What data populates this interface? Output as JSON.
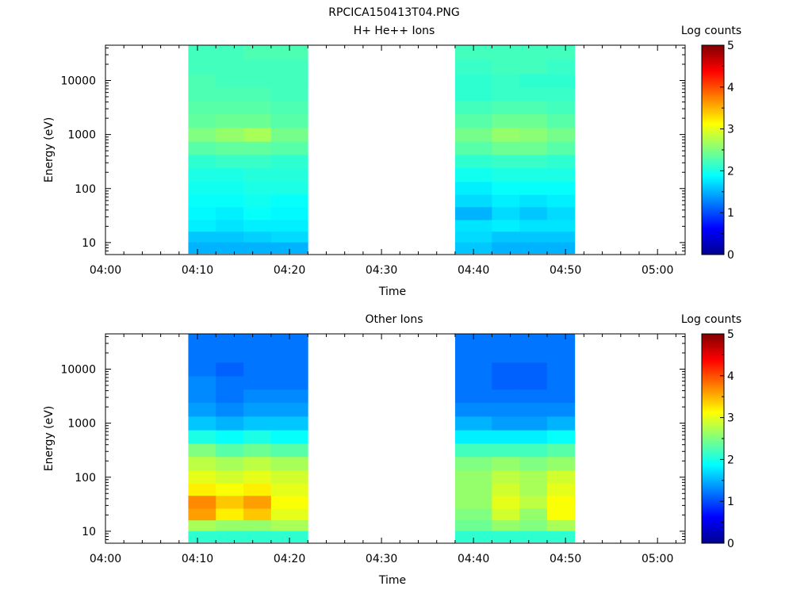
{
  "page_title": "RPCICA150413T04.PNG",
  "x_tick_labels": [
    "04:00",
    "04:10",
    "04:20",
    "04:30",
    "04:40",
    "04:50",
    "05:00"
  ],
  "colormap": [
    "#00008f",
    "#0000ff",
    "#00ffff",
    "#ffff00",
    "#ff0000",
    "#800000"
  ],
  "chart_data": [
    {
      "type": "heatmap",
      "title": "H+ He++ Ions",
      "xlabel": "Time",
      "ylabel": "Energy (eV)",
      "colorbar_label": "Log counts",
      "colorbar_ticks": [
        "0",
        "1",
        "2",
        "3",
        "4",
        "5"
      ],
      "clim": [
        0,
        5
      ],
      "xlim": [
        "04:00",
        "05:03"
      ],
      "ylim": [
        6,
        45000
      ],
      "y_scale": "log",
      "y_tick_labels": [
        "10",
        "100",
        "1000",
        "10000"
      ],
      "columns": [
        "04:09",
        "04:12",
        "04:15",
        "04:18",
        "04:38",
        "04:42",
        "04:45",
        "04:48",
        "04:51"
      ],
      "energies": [
        8,
        13,
        20,
        35,
        60,
        100,
        180,
        320,
        560,
        1000,
        1800,
        3200,
        5600,
        10000,
        18000,
        32000
      ],
      "series": [
        {
          "time_start": "04:09",
          "time_end": "04:12",
          "values": [
            1.5,
            1.6,
            1.8,
            1.85,
            1.9,
            1.95,
            2.0,
            2.1,
            2.3,
            2.5,
            2.35,
            2.3,
            2.25,
            2.25,
            2.2,
            2.2
          ]
        },
        {
          "time_start": "04:12",
          "time_end": "04:15",
          "values": [
            1.5,
            1.6,
            1.75,
            1.8,
            1.9,
            1.95,
            2.0,
            2.15,
            2.35,
            2.6,
            2.4,
            2.3,
            2.25,
            2.2,
            2.2,
            2.2
          ]
        },
        {
          "time_start": "04:15",
          "time_end": "04:18",
          "values": [
            1.5,
            1.65,
            1.8,
            1.9,
            1.95,
            2.0,
            2.05,
            2.15,
            2.35,
            2.7,
            2.4,
            2.3,
            2.25,
            2.2,
            2.2,
            2.25
          ]
        },
        {
          "time_start": "04:18",
          "time_end": "04:22",
          "values": [
            1.5,
            1.7,
            1.8,
            1.85,
            1.9,
            2.0,
            2.05,
            2.1,
            2.3,
            2.45,
            2.3,
            2.25,
            2.2,
            2.2,
            2.2,
            2.25
          ]
        },
        {
          "time_start": "04:38",
          "time_end": "04:42",
          "values": [
            1.6,
            1.7,
            1.75,
            1.5,
            1.7,
            1.8,
            1.95,
            2.1,
            2.3,
            2.45,
            2.3,
            2.2,
            2.1,
            2.1,
            2.15,
            2.2
          ]
        },
        {
          "time_start": "04:42",
          "time_end": "04:45",
          "values": [
            1.5,
            1.6,
            1.8,
            1.7,
            1.8,
            1.9,
            2.0,
            2.15,
            2.4,
            2.6,
            2.4,
            2.25,
            2.15,
            2.15,
            2.2,
            2.2
          ]
        },
        {
          "time_start": "04:45",
          "time_end": "04:48",
          "values": [
            1.5,
            1.6,
            1.75,
            1.6,
            1.75,
            1.9,
            2.0,
            2.15,
            2.4,
            2.55,
            2.4,
            2.25,
            2.15,
            2.1,
            2.2,
            2.2
          ]
        },
        {
          "time_start": "04:48",
          "time_end": "04:51",
          "values": [
            1.5,
            1.6,
            1.75,
            1.7,
            1.8,
            1.9,
            2.0,
            2.1,
            2.3,
            2.45,
            2.3,
            2.2,
            2.15,
            2.1,
            2.15,
            2.2
          ]
        }
      ]
    },
    {
      "type": "heatmap",
      "title": "Other Ions",
      "xlabel": "Time",
      "ylabel": "Energy (eV)",
      "colorbar_label": "Log counts",
      "colorbar_ticks": [
        "0",
        "1",
        "2",
        "3",
        "4",
        "5"
      ],
      "clim": [
        0,
        5
      ],
      "xlim": [
        "04:00",
        "05:03"
      ],
      "ylim": [
        6,
        45000
      ],
      "y_scale": "log",
      "y_tick_labels": [
        "10",
        "100",
        "1000",
        "10000"
      ],
      "energies": [
        8,
        13,
        20,
        35,
        60,
        100,
        180,
        320,
        560,
        1000,
        1800,
        3200,
        5600,
        10000,
        18000,
        32000
      ],
      "series": [
        {
          "time_start": "04:09",
          "time_end": "04:12",
          "values": [
            2.1,
            2.7,
            3.6,
            3.7,
            3.2,
            3.0,
            2.8,
            2.5,
            2.0,
            1.6,
            1.4,
            1.3,
            1.3,
            1.2,
            1.2,
            1.2
          ]
        },
        {
          "time_start": "04:12",
          "time_end": "04:15",
          "values": [
            2.1,
            2.6,
            3.2,
            3.4,
            3.1,
            2.9,
            2.7,
            2.3,
            1.9,
            1.5,
            1.3,
            1.2,
            1.2,
            1.1,
            1.2,
            1.2
          ]
        },
        {
          "time_start": "04:15",
          "time_end": "04:18",
          "values": [
            2.1,
            2.6,
            3.4,
            3.6,
            3.2,
            3.0,
            2.8,
            2.4,
            2.0,
            1.6,
            1.4,
            1.3,
            1.2,
            1.2,
            1.2,
            1.2
          ]
        },
        {
          "time_start": "04:18",
          "time_end": "04:22",
          "values": [
            2.1,
            2.7,
            3.0,
            3.1,
            3.0,
            2.9,
            2.7,
            2.3,
            1.9,
            1.6,
            1.4,
            1.3,
            1.2,
            1.2,
            1.2,
            1.2
          ]
        },
        {
          "time_start": "04:38",
          "time_end": "04:42",
          "values": [
            2.1,
            2.4,
            2.5,
            2.6,
            2.6,
            2.6,
            2.5,
            2.2,
            1.8,
            1.5,
            1.3,
            1.2,
            1.2,
            1.2,
            1.2,
            1.2
          ]
        },
        {
          "time_start": "04:42",
          "time_end": "04:45",
          "values": [
            2.1,
            2.6,
            2.9,
            3.0,
            2.9,
            2.8,
            2.6,
            2.2,
            1.8,
            1.4,
            1.3,
            1.2,
            1.1,
            1.1,
            1.2,
            1.2
          ]
        },
        {
          "time_start": "04:45",
          "time_end": "04:48",
          "values": [
            2.1,
            2.5,
            2.6,
            2.8,
            2.7,
            2.7,
            2.5,
            2.2,
            1.8,
            1.4,
            1.3,
            1.2,
            1.1,
            1.1,
            1.2,
            1.2
          ]
        },
        {
          "time_start": "04:48",
          "time_end": "04:51",
          "values": [
            2.1,
            2.7,
            3.1,
            3.1,
            3.0,
            2.9,
            2.6,
            2.3,
            1.9,
            1.5,
            1.3,
            1.2,
            1.2,
            1.2,
            1.2,
            1.2
          ]
        }
      ]
    }
  ]
}
